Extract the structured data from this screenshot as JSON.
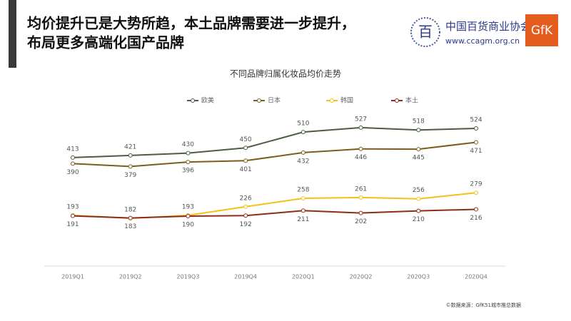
{
  "header": {
    "title_lines": [
      "均价提升已是大势所趋，本土品牌需要进一步提升，",
      "布局更多高端化国产品牌"
    ],
    "org_name": "中国百货商业协会",
    "org_url": "www.ccagm.org.cn",
    "partner": "GfK"
  },
  "chart_data": {
    "type": "line",
    "title": "不同品牌归属化妆品均价走势",
    "categories": [
      "2019Q1",
      "2019Q2",
      "2019Q3",
      "2019Q4",
      "2020Q1",
      "2020Q2",
      "2020Q3",
      "2020Q4"
    ],
    "series": [
      {
        "name": "欧美",
        "color": "#4b5d44",
        "values": [
          413,
          421,
          430,
          450,
          510,
          527,
          518,
          524
        ]
      },
      {
        "name": "日本",
        "color": "#7b5d1c",
        "values": [
          390,
          379,
          396,
          401,
          432,
          446,
          445,
          471
        ]
      },
      {
        "name": "韩国",
        "color": "#f2c21a",
        "values": [
          193,
          182,
          193,
          226,
          258,
          261,
          256,
          279
        ]
      },
      {
        "name": "本土",
        "color": "#8e2b1b",
        "values": [
          191,
          183,
          190,
          192,
          211,
          202,
          210,
          216
        ]
      }
    ],
    "ylim": [
      0,
      600
    ],
    "grid": false,
    "legend": "top"
  },
  "source": "©数据来源：GfK51城市推总数据"
}
